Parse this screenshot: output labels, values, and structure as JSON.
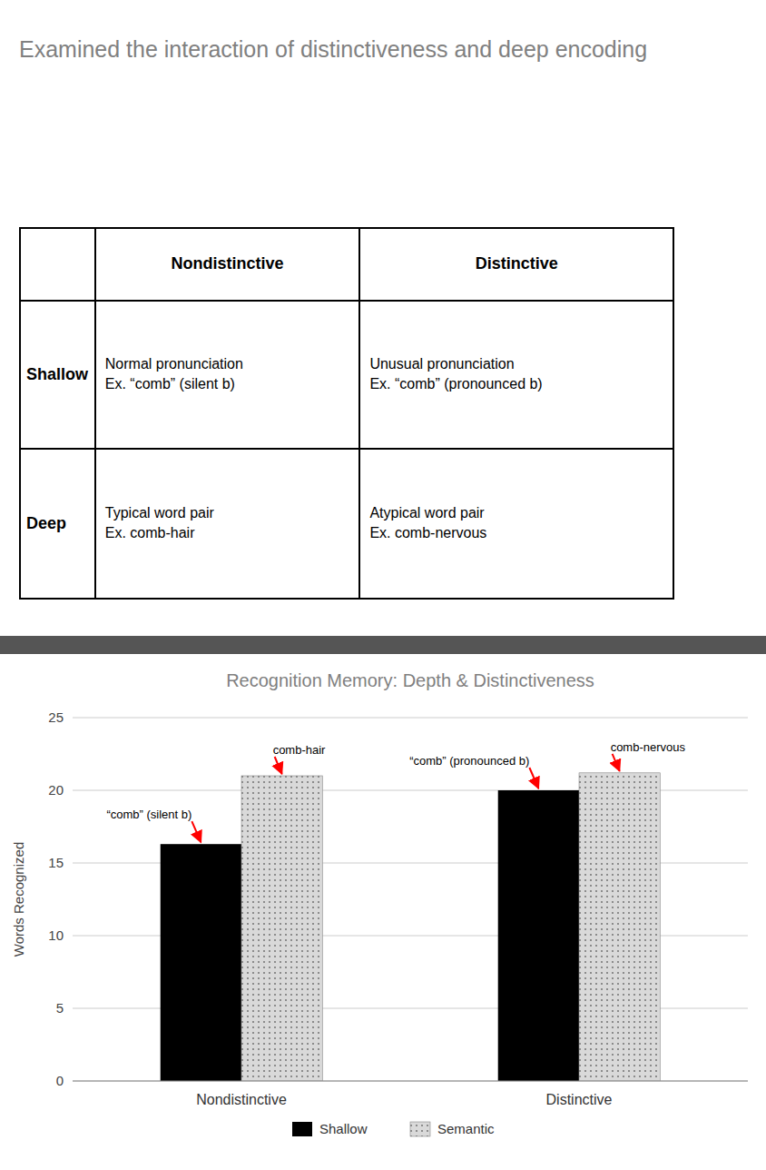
{
  "chart_data": [
    {
      "type": "table",
      "title": "Examined the interaction of distinctiveness and deep encoding",
      "columns": [
        "Nondistinctive",
        "Distinctive"
      ],
      "rows": [
        {
          "header": "Shallow",
          "cells": [
            "Normal pronunciation\nEx. “comb” (silent b)",
            "Unusual pronunciation\nEx. “comb” (pronounced b)"
          ]
        },
        {
          "header": "Deep",
          "cells": [
            "Typical word pair\nEx. comb-hair",
            "Atypical word pair\nEx. comb-nervous"
          ]
        }
      ]
    },
    {
      "type": "bar",
      "title": "Recognition Memory: Depth & Distinctiveness",
      "ylabel": "Words Recognized",
      "categories": [
        "Nondistinctive",
        "Distinctive"
      ],
      "series": [
        {
          "name": "Shallow",
          "color": "#000000",
          "values": [
            16.3,
            20.0
          ],
          "annotations": [
            "“comb” (silent b)",
            "“comb” (pronounced b)"
          ]
        },
        {
          "name": "Semantic",
          "color": "#d9d9d9",
          "values": [
            21.0,
            21.2
          ],
          "annotations": [
            "comb-hair",
            "comb-nervous"
          ]
        }
      ],
      "ylim": [
        0,
        25
      ],
      "yticks": [
        0,
        5,
        10,
        15,
        20,
        25
      ],
      "grid": true,
      "legend": "bottom"
    }
  ]
}
